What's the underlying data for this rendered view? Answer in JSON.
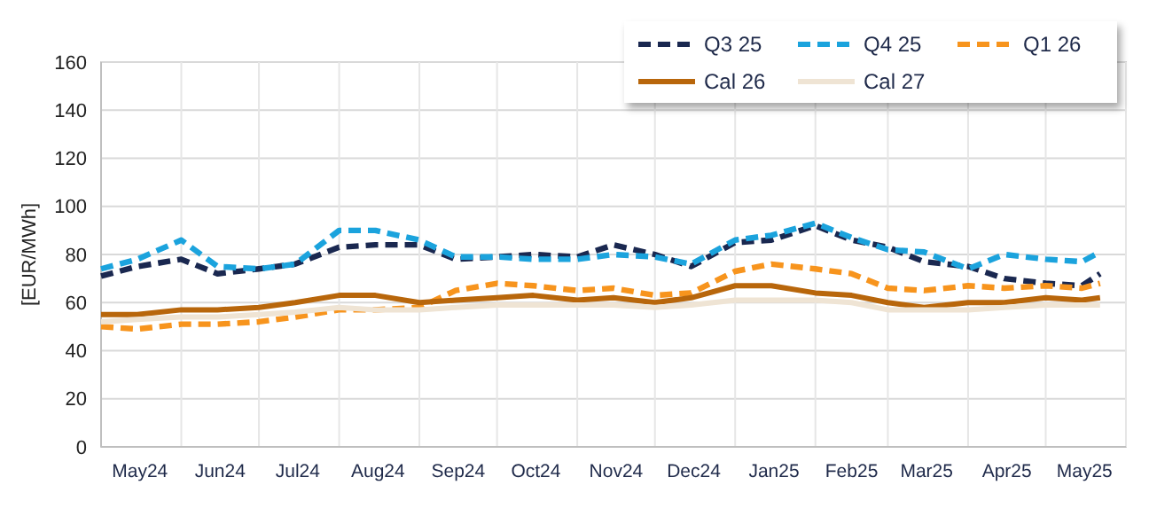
{
  "chart_data": {
    "type": "line",
    "ylabel": "[EUR/MWh]",
    "x": [
      "2024-05-01",
      "2024-05-15",
      "2024-06-01",
      "2024-06-15",
      "2024-07-01",
      "2024-07-15",
      "2024-08-01",
      "2024-08-15",
      "2024-09-01",
      "2024-09-15",
      "2024-10-01",
      "2024-10-15",
      "2024-11-01",
      "2024-11-15",
      "2024-12-01",
      "2024-12-15",
      "2025-01-01",
      "2025-01-15",
      "2025-02-01",
      "2025-02-15",
      "2025-03-01",
      "2025-03-15",
      "2025-04-01",
      "2025-04-15",
      "2025-05-01",
      "2025-05-15",
      "2025-05-22"
    ],
    "series": [
      {
        "name": "Q3 25",
        "color": "#1a2850",
        "line_style": "dashed",
        "values": [
          71,
          75,
          78,
          72,
          74,
          76,
          83,
          84,
          84,
          78,
          79,
          80,
          79,
          84,
          80,
          75,
          85,
          86,
          92,
          86,
          83,
          77,
          75,
          70,
          68,
          67,
          72
        ]
      },
      {
        "name": "Q4 25",
        "color": "#1ba3dd",
        "line_style": "dashed",
        "values": [
          74,
          78,
          86,
          75,
          74,
          76,
          90,
          90,
          86,
          79,
          79,
          78,
          78,
          80,
          79,
          76,
          86,
          88,
          93,
          87,
          82,
          81,
          74,
          80,
          78,
          77,
          81
        ]
      },
      {
        "name": "Q1 26",
        "color": "#f7941d",
        "line_style": "dashed",
        "values": [
          50,
          49,
          51,
          51,
          52,
          54,
          57,
          57,
          58,
          65,
          68,
          67,
          65,
          66,
          63,
          64,
          73,
          76,
          74,
          72,
          66,
          65,
          67,
          66,
          67,
          66,
          68
        ]
      },
      {
        "name": "Cal 26",
        "color": "#b8660b",
        "line_style": "solid",
        "values": [
          55,
          55,
          57,
          57,
          58,
          60,
          63,
          63,
          60,
          61,
          62,
          63,
          61,
          62,
          60,
          62,
          67,
          67,
          64,
          63,
          60,
          58,
          60,
          60,
          62,
          61,
          62
        ]
      },
      {
        "name": "Cal 27",
        "color": "#efe4d4",
        "line_style": "solid",
        "values": [
          52,
          53,
          54,
          54,
          55,
          56,
          58,
          57,
          57,
          58,
          59,
          59,
          59,
          59,
          58,
          59,
          61,
          61,
          61,
          60,
          57,
          57,
          57,
          58,
          59,
          59,
          59
        ]
      }
    ],
    "xlim": [
      "2024-05-01",
      "2025-06-01"
    ],
    "xticks": [
      {
        "value": "2024-05-01",
        "label": null
      },
      {
        "value": "2024-05-16",
        "label": "May24"
      },
      {
        "value": "2024-06-01",
        "label": null
      },
      {
        "value": "2024-06-16",
        "label": "Jun24"
      },
      {
        "value": "2024-07-01",
        "label": null
      },
      {
        "value": "2024-07-16",
        "label": "Jul24"
      },
      {
        "value": "2024-08-01",
        "label": null
      },
      {
        "value": "2024-08-16",
        "label": "Aug24"
      },
      {
        "value": "2024-09-01",
        "label": null
      },
      {
        "value": "2024-09-16",
        "label": "Sep24"
      },
      {
        "value": "2024-10-01",
        "label": null
      },
      {
        "value": "2024-10-16",
        "label": "Oct24"
      },
      {
        "value": "2024-11-01",
        "label": null
      },
      {
        "value": "2024-11-16",
        "label": "Nov24"
      },
      {
        "value": "2024-12-01",
        "label": null
      },
      {
        "value": "2024-12-16",
        "label": "Dec24"
      },
      {
        "value": "2025-01-01",
        "label": null
      },
      {
        "value": "2025-01-16",
        "label": "Jan25"
      },
      {
        "value": "2025-02-01",
        "label": null
      },
      {
        "value": "2025-02-15",
        "label": "Feb25"
      },
      {
        "value": "2025-03-01",
        "label": null
      },
      {
        "value": "2025-03-16",
        "label": "Mar25"
      },
      {
        "value": "2025-04-01",
        "label": null
      },
      {
        "value": "2025-04-16",
        "label": "Apr25"
      },
      {
        "value": "2025-05-01",
        "label": null
      },
      {
        "value": "2025-05-16",
        "label": "May25"
      },
      {
        "value": "2025-06-01",
        "label": null
      }
    ],
    "ylim": [
      0,
      160
    ],
    "yticks": [
      0,
      20,
      40,
      60,
      80,
      100,
      120,
      140,
      160
    ],
    "grid": true,
    "legend": "top right",
    "marker": "none"
  }
}
